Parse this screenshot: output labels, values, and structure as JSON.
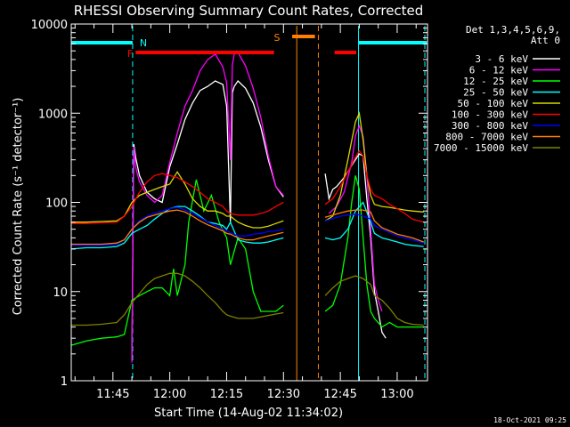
{
  "chart_data": {
    "type": "line",
    "title": "RHESSI Observing Summary Count Rates, Corrected",
    "xlabel": "Start Time (14-Aug-02 11:34:02)",
    "ylabel": "Corrected Count Rate (s⁻¹ detector⁻¹)",
    "x_unit": "minutes since 11:34:02",
    "xlim": [
      0,
      94
    ],
    "ylim": [
      1,
      10000
    ],
    "yscale": "log",
    "x_ticks": [
      {
        "label": "11:45",
        "value": 11
      },
      {
        "label": "12:00",
        "value": 26
      },
      {
        "label": "12:15",
        "value": 41
      },
      {
        "label": "12:30",
        "value": 56
      },
      {
        "label": "12:45",
        "value": 71
      },
      {
        "label": "13:00",
        "value": 86
      }
    ],
    "y_ticks": [
      {
        "label": "1",
        "value": 1
      },
      {
        "label": "10",
        "value": 10
      },
      {
        "label": "100",
        "value": 100
      },
      {
        "label": "1000",
        "value": 1000
      },
      {
        "label": "10000",
        "value": 10000
      }
    ],
    "legend_title": [
      "Det 1,3,4,5,6,9,",
      "Att 0"
    ],
    "legend_position": "right",
    "timestamp": "18-Oct-2021 09:25",
    "series": [
      {
        "name": "3 - 6 keV",
        "color": "#ffffff",
        "x": [
          16.0,
          16.5,
          17,
          18,
          20,
          22,
          24,
          26,
          28,
          30,
          32,
          34,
          36,
          38,
          40,
          41,
          42,
          42.5,
          43,
          44,
          46,
          48,
          50,
          52,
          54,
          56,
          67,
          68,
          69,
          70,
          72,
          74,
          76,
          77,
          78,
          79,
          80,
          81,
          82,
          83
        ],
        "y": [
          1.7,
          450,
          320,
          200,
          130,
          110,
          100,
          250,
          450,
          850,
          1300,
          1800,
          2000,
          2300,
          2100,
          1200,
          60,
          1700,
          2000,
          2300,
          1900,
          1300,
          700,
          300,
          150,
          115,
          210,
          110,
          140,
          150,
          190,
          260,
          350,
          330,
          110,
          40,
          10,
          6,
          3.5,
          3
        ]
      },
      {
        "name": "6 - 12 keV",
        "color": "#ff00ff",
        "x": [
          16.0,
          16.5,
          17,
          18,
          20,
          22,
          24,
          26,
          28,
          30,
          32,
          34,
          36,
          38,
          40,
          41,
          42,
          42.5,
          43,
          44,
          46,
          48,
          50,
          52,
          54,
          56,
          68,
          70,
          72,
          74,
          75,
          76,
          77,
          78,
          79,
          80,
          81,
          82
        ],
        "y": [
          1.6,
          420,
          250,
          170,
          120,
          100,
          120,
          280,
          600,
          1200,
          1800,
          3000,
          4000,
          4600,
          3300,
          2200,
          300,
          3500,
          4600,
          4800,
          3400,
          1900,
          900,
          330,
          150,
          120,
          75,
          90,
          130,
          280,
          560,
          720,
          550,
          200,
          50,
          12,
          8,
          6
        ]
      },
      {
        "name": "12 - 25 keV",
        "color": "#00ff00",
        "x": [
          0,
          4,
          8,
          12,
          14,
          16,
          18,
          20,
          22,
          24,
          26,
          27,
          28,
          30,
          31,
          33,
          35,
          37,
          39,
          41,
          42,
          44,
          46,
          48,
          50,
          52,
          54,
          56,
          67,
          69,
          71,
          73,
          74,
          75,
          76,
          77,
          78,
          79,
          80,
          82,
          84,
          86,
          88,
          90,
          93
        ],
        "y": [
          2.5,
          2.8,
          3,
          3.1,
          3.3,
          8,
          9,
          10,
          11,
          11,
          9,
          18,
          9,
          20,
          60,
          180,
          80,
          120,
          60,
          40,
          20,
          40,
          30,
          10,
          6,
          6,
          6,
          7,
          6,
          7,
          12,
          40,
          100,
          200,
          140,
          40,
          12,
          6,
          5,
          4,
          4.5,
          4,
          4,
          4,
          4
        ]
      },
      {
        "name": "25 - 50 keV",
        "color": "#00ffff",
        "x": [
          0,
          4,
          8,
          12,
          14,
          16,
          18,
          20,
          22,
          24,
          26,
          28,
          30,
          32,
          34,
          36,
          38,
          40,
          41,
          42,
          44,
          46,
          48,
          50,
          52,
          54,
          56,
          67,
          69,
          71,
          73,
          75,
          77,
          79,
          80,
          82,
          84,
          86,
          88,
          90,
          93
        ],
        "y": [
          30,
          31,
          31,
          32,
          35,
          45,
          50,
          55,
          65,
          75,
          85,
          90,
          90,
          80,
          70,
          60,
          58,
          55,
          50,
          60,
          38,
          36,
          35,
          35,
          36,
          38,
          40,
          40,
          38,
          40,
          50,
          80,
          100,
          60,
          45,
          40,
          38,
          36,
          34,
          33,
          32
        ]
      },
      {
        "name": "50 - 100 keV",
        "color": "#d8d800",
        "x": [
          0,
          4,
          8,
          12,
          14,
          16,
          18,
          20,
          22,
          24,
          26,
          28,
          30,
          32,
          34,
          36,
          38,
          40,
          41,
          42,
          44,
          46,
          48,
          50,
          52,
          54,
          56,
          67,
          69,
          71,
          73,
          75,
          76,
          77,
          78,
          79,
          80,
          82,
          84,
          86,
          88,
          90,
          93
        ],
        "y": [
          60,
          60,
          61,
          62,
          70,
          100,
          120,
          130,
          140,
          150,
          160,
          220,
          160,
          110,
          90,
          80,
          80,
          75,
          70,
          70,
          60,
          55,
          52,
          52,
          54,
          58,
          62,
          62,
          70,
          120,
          300,
          800,
          1000,
          500,
          200,
          120,
          95,
          90,
          88,
          85,
          82,
          80,
          78
        ]
      },
      {
        "name": "100 - 300 keV",
        "color": "#ff0000",
        "x": [
          0,
          4,
          8,
          12,
          14,
          16,
          18,
          20,
          22,
          24,
          26,
          28,
          30,
          32,
          34,
          36,
          38,
          40,
          41,
          42,
          44,
          46,
          48,
          50,
          52,
          54,
          56,
          67,
          69,
          71,
          73,
          75,
          76,
          77,
          78,
          79,
          80,
          82,
          84,
          86,
          88,
          90,
          93
        ],
        "y": [
          58,
          58,
          59,
          60,
          70,
          90,
          130,
          170,
          200,
          210,
          200,
          190,
          170,
          150,
          130,
          110,
          100,
          90,
          80,
          75,
          72,
          72,
          72,
          75,
          80,
          90,
          100,
          95,
          110,
          150,
          220,
          320,
          380,
          330,
          200,
          140,
          120,
          110,
          95,
          85,
          75,
          65,
          60
        ]
      },
      {
        "name": "300 - 800 keV",
        "color": "#0000ff",
        "x": [
          0,
          4,
          8,
          12,
          14,
          16,
          18,
          20,
          22,
          24,
          26,
          28,
          30,
          32,
          34,
          36,
          38,
          40,
          41,
          42,
          44,
          46,
          48,
          50,
          52,
          54,
          56,
          67,
          69,
          71,
          73,
          75,
          77,
          79,
          80,
          82,
          84,
          86,
          88,
          90,
          93
        ],
        "y": [
          33,
          33,
          33,
          34,
          38,
          50,
          62,
          70,
          76,
          80,
          85,
          88,
          82,
          75,
          68,
          60,
          55,
          50,
          48,
          46,
          42,
          42,
          44,
          45,
          47,
          48,
          50,
          62,
          66,
          70,
          72,
          74,
          70,
          65,
          55,
          50,
          46,
          42,
          40,
          38,
          35
        ]
      },
      {
        "name": "800 - 7000 keV",
        "color": "#ff8000",
        "x": [
          0,
          4,
          8,
          12,
          14,
          16,
          18,
          20,
          22,
          24,
          26,
          28,
          30,
          32,
          34,
          36,
          38,
          40,
          41,
          42,
          44,
          46,
          48,
          50,
          52,
          54,
          56,
          67,
          69,
          71,
          73,
          75,
          77,
          79,
          80,
          82,
          84,
          86,
          88,
          90,
          93
        ],
        "y": [
          34,
          34,
          34,
          35,
          38,
          50,
          60,
          68,
          72,
          76,
          80,
          82,
          78,
          70,
          62,
          56,
          52,
          48,
          45,
          44,
          40,
          38,
          38,
          40,
          42,
          44,
          46,
          68,
          72,
          76,
          80,
          82,
          82,
          78,
          62,
          52,
          48,
          44,
          42,
          40,
          36
        ]
      },
      {
        "name": "7000 - 15000 keV",
        "color": "#808000",
        "x": [
          0,
          4,
          8,
          12,
          14,
          16,
          18,
          20,
          22,
          24,
          26,
          28,
          30,
          32,
          34,
          36,
          38,
          40,
          41,
          42,
          44,
          46,
          48,
          50,
          52,
          54,
          56,
          67,
          69,
          71,
          73,
          75,
          77,
          79,
          80,
          82,
          84,
          86,
          88,
          90,
          93
        ],
        "y": [
          4.2,
          4.2,
          4.3,
          4.5,
          5.5,
          7.5,
          9.5,
          12,
          14,
          15,
          16,
          16,
          15,
          13,
          11,
          9,
          7.5,
          6,
          5.5,
          5.3,
          5,
          5,
          5,
          5.2,
          5.4,
          5.6,
          5.8,
          9,
          11,
          13,
          14,
          15,
          14,
          12,
          9,
          8,
          6.5,
          5,
          4.5,
          4.3,
          4.2
        ]
      }
    ],
    "flag_bars": [
      {
        "label": "N",
        "color": "#00ffff",
        "segments": [
          [
            0,
            16.2
          ],
          [
            75.8,
            93.8
          ]
        ]
      },
      {
        "label": "F",
        "color": "#ff0000",
        "segments": [
          [
            17,
            53.5
          ],
          [
            69.5,
            75.2
          ]
        ]
      },
      {
        "label": "S",
        "color": "#ff8000",
        "segments": [
          [
            58.3,
            64.3
          ]
        ]
      }
    ],
    "markers": [
      {
        "color": "#00ffff",
        "style": "dashed",
        "x": 16.2
      },
      {
        "color": "#00ffff",
        "style": "solid",
        "x": 75.8
      },
      {
        "color": "#00ffff",
        "style": "dashed",
        "x": 93.3
      },
      {
        "color": "#ff8000",
        "style": "solid",
        "x": 59.5
      },
      {
        "color": "#ff8000",
        "style": "dashed",
        "x": 65.2
      }
    ]
  }
}
